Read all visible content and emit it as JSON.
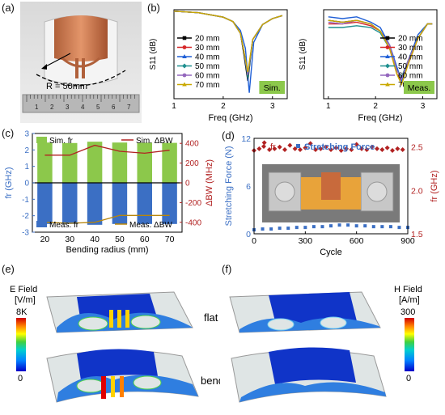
{
  "panel_labels": {
    "a": "(a)",
    "b": "(b)",
    "c": "(c)",
    "d": "(d)",
    "e": "(e)",
    "f": "(f)"
  },
  "photo_a": {
    "radius_label": "R = 50mm",
    "ruler_numbers": [
      "1",
      "2",
      "3",
      "4",
      "5",
      "6",
      "7"
    ]
  },
  "colors": {
    "20mm": "#000000",
    "30mm": "#d62728",
    "40mm": "#1f5fd6",
    "50mm": "#1f8f8f",
    "60mm": "#9467bd",
    "70mm": "#c9a800",
    "sim_badge": "#8cc84b",
    "sim_fr_bar": "#8cc84b",
    "meas_fr_bar": "#3b6fc4",
    "dbw_line": "#b22222",
    "fr_marker": "#b22222",
    "force_marker": "#3b6fc4"
  },
  "chart_data": [
    {
      "id": "b-sim",
      "type": "line",
      "badge": "Sim.",
      "xlabel": "Freq (GHz)",
      "ylabel": "S11 (dB)",
      "xlim": [
        1,
        3.3
      ],
      "ylim": [
        -30,
        0
      ],
      "xticks": [
        "1",
        "2",
        "3"
      ],
      "legend_position": "left",
      "series": [
        {
          "name": "20 mm",
          "x": [
            1.0,
            1.5,
            2.0,
            2.2,
            2.35,
            2.42,
            2.5,
            2.6,
            2.8,
            3.0,
            3.2
          ],
          "y": [
            -0.5,
            -1,
            -2.5,
            -4,
            -8,
            -15,
            -24,
            -10,
            -5,
            -3,
            -2
          ]
        },
        {
          "name": "30 mm",
          "x": [
            1.0,
            1.5,
            2.0,
            2.2,
            2.35,
            2.42,
            2.5,
            2.6,
            2.8,
            3.0,
            3.2
          ],
          "y": [
            -0.5,
            -1,
            -2.5,
            -4,
            -8,
            -14,
            -22,
            -10,
            -5,
            -3,
            -2
          ]
        },
        {
          "name": "40 mm",
          "x": [
            1.0,
            1.5,
            2.0,
            2.2,
            2.35,
            2.45,
            2.53,
            2.62,
            2.8,
            3.0,
            3.2
          ],
          "y": [
            -0.5,
            -1,
            -2.5,
            -4,
            -7,
            -13,
            -28,
            -11,
            -5,
            -3,
            -2
          ]
        },
        {
          "name": "50 mm",
          "x": [
            1.0,
            1.5,
            2.0,
            2.2,
            2.35,
            2.42,
            2.5,
            2.6,
            2.8,
            3.0,
            3.2
          ],
          "y": [
            -0.5,
            -1,
            -2.5,
            -4,
            -8,
            -14,
            -23,
            -10,
            -5,
            -3,
            -2
          ]
        },
        {
          "name": "60 mm",
          "x": [
            1.0,
            1.5,
            2.0,
            2.2,
            2.35,
            2.42,
            2.5,
            2.6,
            2.8,
            3.0,
            3.2
          ],
          "y": [
            -0.5,
            -1,
            -2.5,
            -4,
            -8,
            -14,
            -22,
            -10,
            -5,
            -3,
            -2
          ]
        },
        {
          "name": "70 mm",
          "x": [
            1.0,
            1.5,
            2.0,
            2.2,
            2.35,
            2.42,
            2.5,
            2.6,
            2.8,
            3.0,
            3.2
          ],
          "y": [
            -0.5,
            -1,
            -2.5,
            -4,
            -8,
            -14,
            -21,
            -10,
            -5,
            -3,
            -2
          ]
        }
      ]
    },
    {
      "id": "b-meas",
      "type": "line",
      "badge": "Meas.",
      "xlabel": "Freq (GHz)",
      "ylabel": "S11 (dB)",
      "xlim": [
        0.9,
        3.3
      ],
      "ylim": [
        -25,
        0
      ],
      "xticks": [
        "1",
        "2",
        "3"
      ],
      "legend_position": "right",
      "series": [
        {
          "name": "20 mm",
          "x": [
            1.0,
            1.3,
            1.6,
            1.9,
            2.1,
            2.3,
            2.45,
            2.55,
            2.7,
            2.9,
            3.1,
            3.2
          ],
          "y": [
            -3,
            -3.5,
            -3,
            -4,
            -6,
            -10,
            -17,
            -19,
            -14,
            -8,
            -4,
            -4
          ]
        },
        {
          "name": "30 mm",
          "x": [
            1.0,
            1.3,
            1.6,
            1.9,
            2.1,
            2.3,
            2.45,
            2.55,
            2.7,
            2.9,
            3.1,
            3.2
          ],
          "y": [
            -4,
            -4,
            -3.5,
            -4.5,
            -6,
            -11,
            -18,
            -20,
            -15,
            -8,
            -4,
            -4
          ]
        },
        {
          "name": "40 mm",
          "x": [
            1.0,
            1.3,
            1.6,
            1.9,
            2.1,
            2.3,
            2.45,
            2.55,
            2.7,
            2.9,
            3.1,
            3.2
          ],
          "y": [
            -2,
            -2.5,
            -2,
            -3.5,
            -5,
            -10,
            -16,
            -20,
            -14,
            -7,
            -4,
            -4
          ]
        },
        {
          "name": "50 mm",
          "x": [
            1.0,
            1.3,
            1.6,
            1.9,
            2.1,
            2.3,
            2.45,
            2.55,
            2.7,
            2.9,
            3.1,
            3.2
          ],
          "y": [
            -5,
            -5,
            -4.5,
            -5,
            -6.5,
            -11,
            -17,
            -19,
            -14,
            -8,
            -4,
            -4
          ]
        },
        {
          "name": "60 mm",
          "x": [
            1.0,
            1.3,
            1.6,
            1.9,
            2.1,
            2.3,
            2.45,
            2.55,
            2.7,
            2.9,
            3.1,
            3.2
          ],
          "y": [
            -3.5,
            -4,
            -3,
            -4,
            -6,
            -10,
            -17,
            -19.5,
            -14,
            -8,
            -4,
            -4
          ]
        },
        {
          "name": "70 mm",
          "x": [
            1.0,
            1.3,
            1.6,
            1.9,
            2.1,
            2.3,
            2.45,
            2.55,
            2.7,
            2.9,
            3.1,
            3.2
          ],
          "y": [
            -3,
            -3.5,
            -3,
            -4,
            -6,
            -11,
            -18,
            -21,
            -15,
            -8,
            -4,
            -4
          ]
        }
      ]
    },
    {
      "id": "c",
      "type": "bar",
      "categories": [
        "20",
        "30",
        "40",
        "50",
        "60",
        "70"
      ],
      "xlabel": "Bending radius (mm)",
      "ylabel_left": "fr (GHz)",
      "ylabel_right": "ΔBW (MHz)",
      "ylim_left": [
        -3,
        3
      ],
      "yticks_left": [
        "-3",
        "-2",
        "-1",
        "0",
        "1",
        "2",
        "3"
      ],
      "ylim_right": [
        -500,
        500
      ],
      "yticks_right": [
        "-400",
        "-200",
        "0",
        "200",
        "400"
      ],
      "legend": [
        "Sim. fr",
        "Sim. ΔBW",
        "Meas. fr",
        "Meas. ΔBW"
      ],
      "series": [
        {
          "name": "Sim. fr",
          "values": [
            2.45,
            2.42,
            2.5,
            2.45,
            2.44,
            2.43
          ]
        },
        {
          "name": "Meas. fr",
          "values": [
            -2.5,
            -2.5,
            -2.55,
            -2.5,
            -2.5,
            -2.5
          ]
        },
        {
          "name": "Sim. ΔBW",
          "values": [
            280,
            280,
            380,
            320,
            300,
            330
          ]
        },
        {
          "name": "Meas. ΔBW",
          "values": [
            -400,
            -410,
            -400,
            -330,
            -330,
            -330
          ]
        }
      ]
    },
    {
      "id": "d",
      "type": "scatter",
      "xlabel": "Cycle",
      "ylabel_left": "Stretching Force (N)",
      "ylabel_right": "fr (GHz)",
      "xlim": [
        0,
        900
      ],
      "xticks": [
        "0",
        "300",
        "600",
        "900"
      ],
      "ylim_left": [
        0,
        12
      ],
      "yticks_left": [
        "0",
        "6",
        "12"
      ],
      "ylim_right": [
        1.5,
        2.6
      ],
      "yticks_right": [
        "1.5",
        "2.0",
        "2.5"
      ],
      "legend": [
        "fr",
        "Stretching Force"
      ],
      "series": [
        {
          "name": "fr",
          "x": [
            0,
            30,
            60,
            90,
            120,
            150,
            180,
            210,
            240,
            270,
            300,
            330,
            360,
            390,
            420,
            450,
            480,
            510,
            540,
            570,
            600,
            630,
            660,
            690,
            720,
            750,
            780,
            810,
            840,
            870
          ],
          "y": [
            2.46,
            2.48,
            2.55,
            2.47,
            2.48,
            2.5,
            2.47,
            2.52,
            2.48,
            2.47,
            2.49,
            2.54,
            2.47,
            2.48,
            2.5,
            2.47,
            2.49,
            2.46,
            2.48,
            2.47,
            2.53,
            2.48,
            2.47,
            2.5,
            2.48,
            2.47,
            2.49,
            2.46,
            2.48,
            2.47
          ]
        },
        {
          "name": "Stretching Force",
          "x": [
            0,
            50,
            100,
            150,
            200,
            250,
            300,
            350,
            400,
            450,
            500,
            550,
            600,
            650,
            700,
            750,
            800,
            850,
            900
          ],
          "y": [
            0.5,
            0.6,
            0.6,
            0.7,
            0.7,
            0.8,
            0.8,
            0.9,
            0.9,
            1.0,
            1.1,
            1.1,
            1.0,
            1.0,
            0.9,
            0.9,
            0.9,
            0.8,
            0.8
          ]
        }
      ]
    }
  ],
  "panel_e": {
    "title": "E Field",
    "unit": "[V/m]",
    "max": "8K",
    "min": "0"
  },
  "panel_f": {
    "title": "H Field",
    "unit": "[A/m]",
    "max": "300",
    "min": "0"
  },
  "state_labels": {
    "flat": "flat",
    "bending": "bending"
  }
}
